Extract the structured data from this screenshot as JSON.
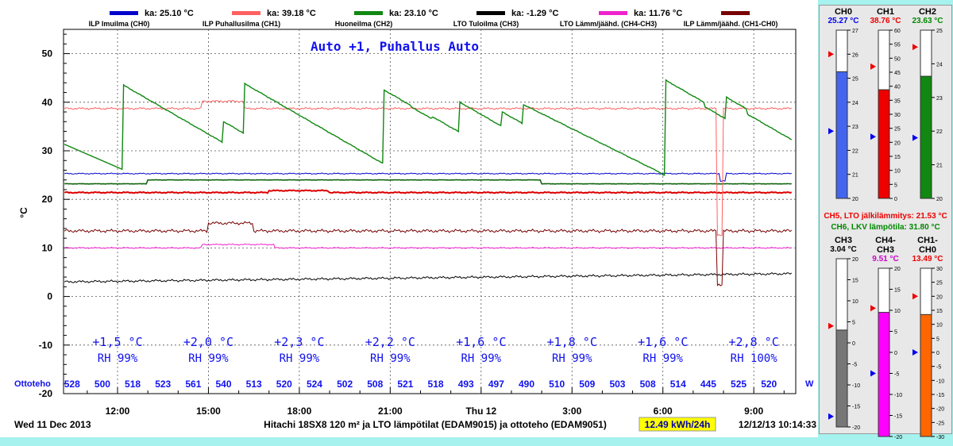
{
  "chart_data": {
    "type": "line",
    "mode_text": "Auto +1, Puhallus Auto",
    "ylabel": "°C",
    "ylim": [
      -20,
      55
    ],
    "y_ticks": [
      -20,
      -10,
      0,
      10,
      20,
      30,
      40,
      50
    ],
    "x_ticks": [
      "12:00",
      "15:00",
      "18:00",
      "21:00",
      "Thu 12",
      "3:00",
      "6:00",
      "9:00"
    ],
    "date_label": "Wed 11 Dec 2013",
    "footer_title": "Hitachi 18SX8 120 m² ja LTO lämpötilat (EDAM9015) ja ottoteho (EDAM9051)",
    "energy": "12.49 kWh/24h",
    "timestamp": "12/12/13 10:14:33",
    "legend": [
      {
        "name": "ILP Imuilma (CH0)",
        "avg": "ka: 25.10 °C",
        "color": "#0000cc"
      },
      {
        "name": "ILP Puhallusilma (CH1)",
        "avg": "ka: 39.18 °C",
        "color": "#ff6060"
      },
      {
        "name": "Huoneilma (CH2)",
        "avg": "ka: 23.10 °C",
        "color": "#118811"
      },
      {
        "name": "LTO Tuloilma (CH3)",
        "avg": "ka: -1.29 °C",
        "color": "#000000"
      },
      {
        "name": "LTO Lämm/jäähd. (CH4-CH3)",
        "avg": "ka: 11.76 °C",
        "color": "#ee22cc"
      },
      {
        "name": "ILP Lämm/jäähd. (CH1-CH0)",
        "avg": "",
        "color": "#770000"
      }
    ],
    "deltas": [
      "+1,5 °C",
      "+2,0 °C",
      "+2,3 °C",
      "+2,2 °C",
      "+1,6 °C",
      "+1,8 °C",
      "+1,6 °C",
      "+2,8 °C"
    ],
    "rh": [
      "RH 99%",
      "RH 99%",
      "RH 99%",
      "RH 99%",
      "RH 99%",
      "RH 99%",
      "RH 99%",
      "RH 100%"
    ],
    "ottoteho_label": "Ottoteho",
    "ottoteho_unit": "W",
    "ottoteho": [
      "528",
      "500",
      "518",
      "523",
      "561",
      "540",
      "513",
      "520",
      "524",
      "502",
      "508",
      "521",
      "518",
      "493",
      "497",
      "490",
      "510",
      "509",
      "503",
      "508",
      "514",
      "445",
      "525",
      "520"
    ]
  },
  "meters": [
    {
      "title": "CH0",
      "value": "25.27 °C",
      "value_color": "#0000ee",
      "fill": "#4466ee",
      "min": 20,
      "max": 27,
      "level": 25.27,
      "red_marker": 26.0,
      "blue_marker": 22.8,
      "ticks": [
        "27",
        "26",
        "25",
        "24",
        "23",
        "22",
        "21",
        "20"
      ]
    },
    {
      "title": "CH1",
      "value": "38.76 °C",
      "value_color": "#ee0000",
      "fill": "#ee0000",
      "min": 0,
      "max": 60,
      "level": 38.76,
      "red_marker": 47,
      "blue_marker": 22,
      "ticks": [
        "60",
        "55",
        "50",
        "45",
        "40",
        "35",
        "30",
        "25",
        "20",
        "15",
        "10",
        "5",
        "0"
      ]
    },
    {
      "title": "CH2",
      "value": "23.63 °C",
      "value_color": "#008800",
      "fill": "#118811",
      "min": 20,
      "max": 25,
      "level": 23.63,
      "red_marker": 24.5,
      "blue_marker": 21.8,
      "ticks": [
        "25",
        "24",
        "23",
        "22",
        "21",
        "20"
      ]
    },
    {
      "title": "CH3",
      "value": "3.04 °C",
      "value_color": "#000000",
      "fill": "#777777",
      "min": -20,
      "max": 20,
      "level": 3.04,
      "red_marker": 4,
      "blue_marker": -17.5,
      "ticks": [
        "20",
        "15",
        "10",
        "5",
        "0",
        "-5",
        "-10",
        "-15",
        "-20"
      ]
    },
    {
      "title": "CH4-CH3",
      "value": "9.51 °C",
      "value_color": "#cc00cc",
      "fill": "#ff00ff",
      "min": -20,
      "max": 20,
      "level": 9.51,
      "red_marker": 10.5,
      "blue_marker": -5,
      "ticks": [
        "20",
        "15",
        "10",
        "5",
        "0",
        "-5",
        "-10",
        "-15",
        "-20"
      ]
    },
    {
      "title": "CH1-CH0",
      "value": "13.49 °C",
      "value_color": "#ee0000",
      "fill": "#ff6600",
      "min": -30,
      "max": 30,
      "level": 13.49,
      "red_marker": 20,
      "blue_marker": 0,
      "ticks": [
        "30",
        "25",
        "20",
        "15",
        "10",
        "5",
        "0",
        "-5",
        "-10",
        "-15",
        "-20",
        "-25",
        "-30"
      ]
    }
  ],
  "extras": [
    {
      "text": "CH5, LTO jälkilämmitys: 21.53 °C",
      "color": "#ee0000"
    },
    {
      "text": "CH6, LKV lämpötila: 31.80 °C",
      "color": "#008800"
    }
  ]
}
